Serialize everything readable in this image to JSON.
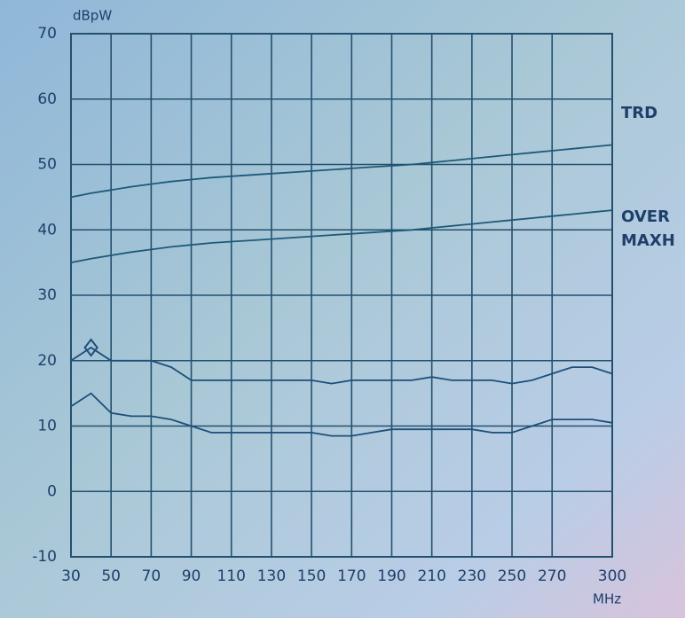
{
  "chart_data": {
    "type": "line",
    "y_label": "dBpW",
    "x_label": "MHz",
    "x": [
      30,
      40,
      50,
      60,
      70,
      80,
      90,
      100,
      110,
      120,
      130,
      140,
      150,
      160,
      170,
      180,
      190,
      200,
      210,
      220,
      230,
      240,
      250,
      260,
      270,
      280,
      290,
      300
    ],
    "series": [
      {
        "color": "#1d5a78",
        "values": [
          45,
          45.6,
          46.1,
          46.6,
          47.0,
          47.4,
          47.7,
          48.0,
          48.2,
          48.4,
          48.6,
          48.8,
          49,
          49.2,
          49.4,
          49.6,
          49.8,
          50,
          50.3,
          50.6,
          50.9,
          51.2,
          51.5,
          51.8,
          52.1,
          52.4,
          52.7,
          53
        ]
      },
      {
        "color": "#1d5a78",
        "values": [
          35,
          35.6,
          36.1,
          36.6,
          37.0,
          37.4,
          37.7,
          38.0,
          38.2,
          38.4,
          38.6,
          38.8,
          39,
          39.2,
          39.4,
          39.6,
          39.8,
          40,
          40.3,
          40.6,
          40.9,
          41.2,
          41.5,
          41.8,
          42.1,
          42.4,
          42.7,
          43
        ]
      },
      {
        "color": "#1d4f7a",
        "values": [
          20,
          22,
          20,
          20,
          20,
          19,
          17,
          17,
          17,
          17,
          17,
          17,
          17,
          16.5,
          17,
          17,
          17,
          17,
          17.5,
          17,
          17,
          17,
          16.5,
          17,
          18,
          19,
          19,
          18
        ]
      },
      {
        "color": "#1d4f7a",
        "values": [
          13,
          15,
          12,
          11.5,
          11.5,
          11,
          10,
          9,
          9,
          9,
          9,
          9,
          9,
          8.5,
          8.5,
          9,
          9.5,
          9.5,
          9.5,
          9.5,
          9.5,
          9,
          9,
          10,
          11,
          11,
          11,
          10.5
        ]
      }
    ],
    "marker": {
      "x": 40,
      "y": 22
    },
    "annotations": [
      "TRD",
      "OVER",
      "MAXH"
    ],
    "xlim": [
      30,
      300
    ],
    "ylim": [
      -10,
      70
    ],
    "xticks": [
      30,
      50,
      70,
      90,
      110,
      130,
      150,
      170,
      190,
      210,
      230,
      250,
      270,
      300
    ],
    "yticks": [
      -10,
      0,
      10,
      20,
      30,
      40,
      50,
      60,
      70
    ],
    "grid": true
  }
}
